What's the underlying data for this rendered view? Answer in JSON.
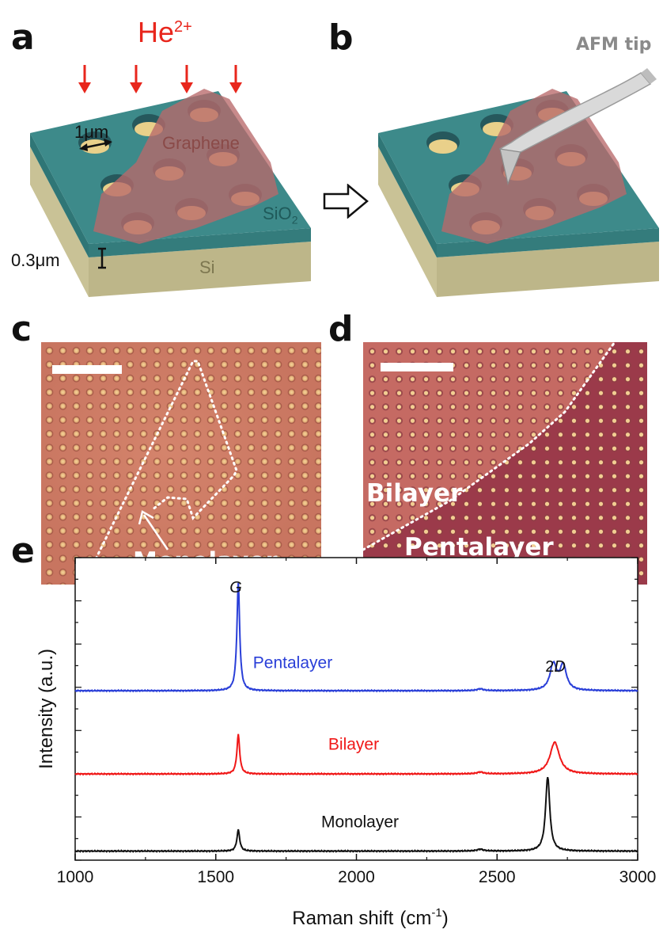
{
  "figure": {
    "panels": {
      "a": {
        "label": "a",
        "ion_label": "He",
        "ion_charge": "2+",
        "hole_size_label": "1μm",
        "layer_thickness_label": "0.3μm",
        "graphene_label": "Graphene",
        "oxide_label": "SiO",
        "oxide_subscript": "2",
        "substrate_label": "Si"
      },
      "b": {
        "label": "b",
        "tip_label": "AFM tip"
      },
      "c": {
        "label": "c",
        "region_label": "Monolayer"
      },
      "d": {
        "label": "d",
        "upper_region_label": "Bilayer",
        "lower_region_label": "Pentalayer"
      },
      "e": {
        "label": "e"
      }
    },
    "colors": {
      "ion_arrow": "#e8261c",
      "oxide": "#3d8a8a",
      "silicon": "#c9c296",
      "graphene": "#b8696a",
      "hole_floor": "#f0b070",
      "micrograph_c": "#c87560",
      "micrograph_d_bilayer": "#c56a63",
      "micrograph_d_pentalayer": "#9b3a4a",
      "pentalayer_trace": "#2a3fd8",
      "bilayer_trace": "#f01818",
      "monolayer_trace": "#111111"
    }
  },
  "chart_data": {
    "type": "line",
    "title": "",
    "xlabel": "Raman shift",
    "xlabel_unit": "(cm",
    "xlabel_unit_exp": "-1",
    "xlabel_unit_close": ")",
    "ylabel": "Intensity (a.u.)",
    "xlim": [
      1000,
      3000
    ],
    "x_ticks": [
      "1000",
      "1500",
      "2000",
      "2500",
      "3000"
    ],
    "peak_labels": {
      "G": "G",
      "2D": "2D"
    },
    "series": [
      {
        "name": "Pentalayer",
        "color": "#2a3fd8",
        "baseline": 0.56,
        "G_height": 0.355,
        "D2_height": 0.085,
        "D2_shape": "split",
        "peaks_at": [
          1580,
          2700,
          2735
        ]
      },
      {
        "name": "Bilayer",
        "color": "#f01818",
        "baseline": 0.285,
        "G_height": 0.13,
        "D2_height": 0.105,
        "D2_shape": "broad",
        "peaks_at": [
          1580,
          2705
        ]
      },
      {
        "name": "Monolayer",
        "color": "#111111",
        "baseline": 0.03,
        "G_height": 0.07,
        "D2_height": 0.245,
        "D2_shape": "sharp",
        "peaks_at": [
          1580,
          2680
        ]
      }
    ]
  }
}
